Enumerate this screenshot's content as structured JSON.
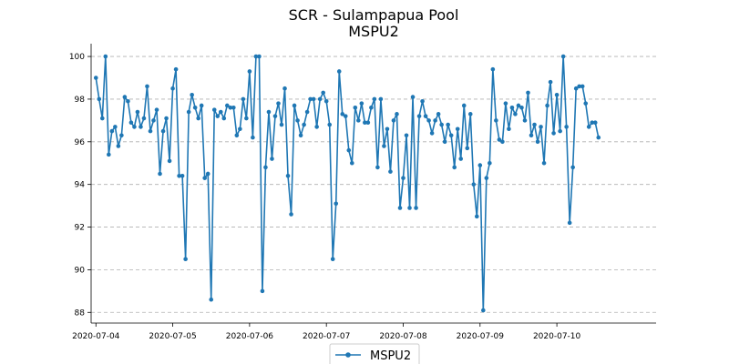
{
  "chart_data": {
    "type": "line",
    "title": "SCR - Sulampapua Pool",
    "subtitle": "MSPU2",
    "xlabel": "",
    "ylabel": "",
    "x_tick_labels": [
      "2020-07-04",
      "2020-07-05",
      "2020-07-06",
      "2020-07-07",
      "2020-07-08",
      "2020-07-09",
      "2020-07-10"
    ],
    "y_ticks": [
      88,
      90,
      92,
      94,
      96,
      98,
      100
    ],
    "xlim": [
      "2020-07-03T22:30",
      "2020-07-11T07:00"
    ],
    "ylim": [
      87.5,
      100.6
    ],
    "grid": "y-dashed",
    "legend_position": "bottom-center",
    "color": "#1f77b4",
    "series": [
      {
        "name": "MSPU2",
        "values": [
          99.0,
          98.0,
          97.1,
          100.0,
          95.4,
          96.5,
          96.7,
          95.8,
          96.3,
          98.1,
          97.9,
          96.9,
          96.7,
          97.4,
          96.7,
          97.1,
          98.6,
          96.5,
          97.0,
          97.5,
          94.5,
          96.5,
          97.1,
          95.1,
          98.5,
          99.4,
          94.4,
          94.4,
          90.5,
          97.4,
          98.2,
          97.6,
          97.1,
          97.7,
          94.3,
          94.5,
          88.6,
          97.5,
          97.2,
          97.4,
          97.1,
          97.7,
          97.6,
          97.6,
          96.3,
          96.6,
          98.0,
          97.1,
          99.3,
          96.2,
          100.0,
          100.0,
          89.0,
          94.8,
          97.4,
          95.2,
          97.2,
          97.8,
          96.8,
          98.5,
          94.4,
          92.6,
          97.7,
          97.0,
          96.3,
          96.8,
          97.4,
          98.0,
          98.0,
          96.7,
          98.0,
          98.3,
          97.9,
          96.8,
          90.5,
          93.1,
          99.3,
          97.3,
          97.2,
          95.6,
          95.0,
          97.6,
          97.0,
          97.8,
          96.9,
          96.9,
          97.6,
          98.0,
          94.8,
          98.0,
          95.8,
          96.6,
          94.6,
          97.0,
          97.3,
          92.9,
          94.3,
          96.3,
          92.9,
          98.1,
          92.9,
          97.2,
          97.9,
          97.2,
          97.0,
          96.4,
          97.0,
          97.3,
          96.8,
          96.0,
          96.8,
          96.3,
          94.8,
          96.6,
          95.2,
          97.7,
          95.7,
          97.3,
          94.0,
          92.5,
          94.9,
          88.1,
          94.3,
          95.0,
          99.4,
          97.0,
          96.1,
          96.0,
          97.8,
          96.6,
          97.6,
          97.3,
          97.7,
          97.6,
          97.0,
          98.3,
          96.3,
          96.8,
          96.0,
          96.7,
          95.0,
          97.7,
          98.8,
          96.4,
          98.2,
          96.5,
          100.0,
          96.7,
          92.2,
          94.8,
          98.5,
          98.6,
          98.6,
          97.8,
          96.7,
          96.9,
          96.9,
          96.2
        ]
      }
    ]
  }
}
